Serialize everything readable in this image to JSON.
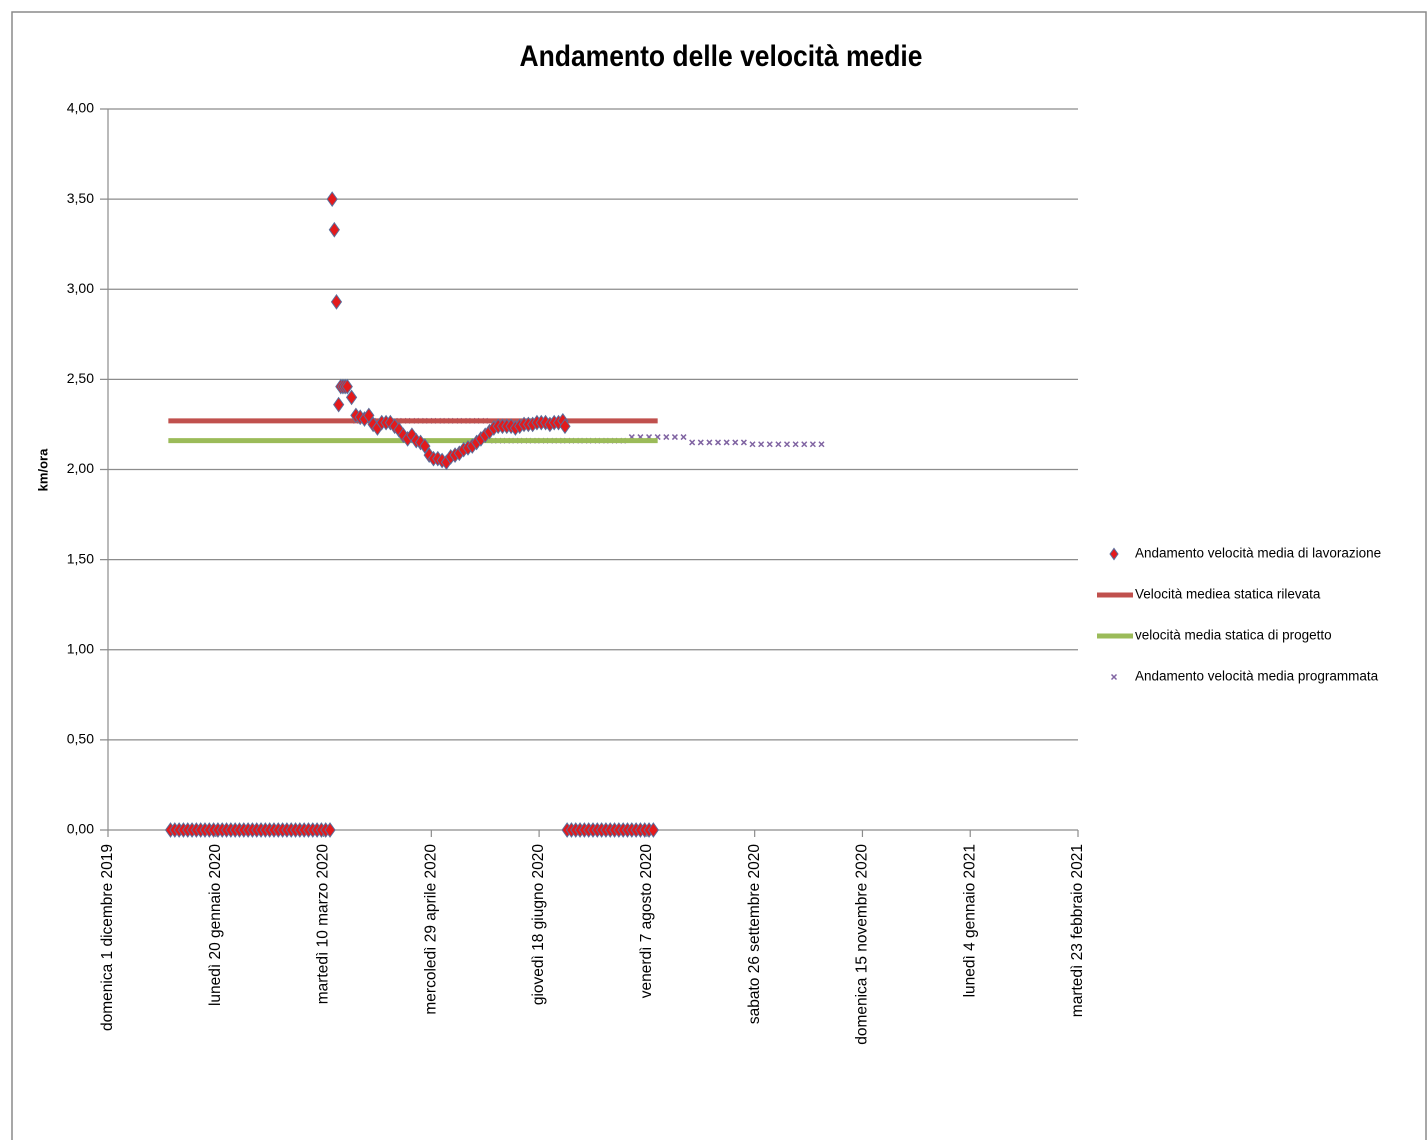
{
  "chart_data": {
    "type": "scatter",
    "title": "Andamento delle velocità medie",
    "y_label": "km/ora",
    "xlim": [
      "2019-12-01",
      "2021-02-23"
    ],
    "xticks": [
      {
        "value": "2019-12-01",
        "label": "domenica 1 dicembre 2019"
      },
      {
        "value": "2020-01-20",
        "label": "lunedì 20 gennaio 2020"
      },
      {
        "value": "2020-03-10",
        "label": "martedì 10 marzo 2020"
      },
      {
        "value": "2020-04-29",
        "label": "mercoledì 29 aprile 2020"
      },
      {
        "value": "2020-06-18",
        "label": "giovedì 18 giugno 2020"
      },
      {
        "value": "2020-08-07",
        "label": "venerdì 7 agosto 2020"
      },
      {
        "value": "2020-09-26",
        "label": "sabato 26 settembre 2020"
      },
      {
        "value": "2020-11-15",
        "label": "domenica 15 novembre 2020"
      },
      {
        "value": "2021-01-04",
        "label": "lunedì 4 gennaio 2021"
      },
      {
        "value": "2021-02-23",
        "label": "martedì 23 febbraio 2021"
      }
    ],
    "ylim": [
      0,
      4
    ],
    "yticks": [
      {
        "value": 0,
        "label": "0,00"
      },
      {
        "value": 0.5,
        "label": "0,50"
      },
      {
        "value": 1,
        "label": "1,00"
      },
      {
        "value": 1.5,
        "label": "1,50"
      },
      {
        "value": 2,
        "label": "2,00"
      },
      {
        "value": 2.5,
        "label": "2,50"
      },
      {
        "value": 3,
        "label": "3,00"
      },
      {
        "value": 3.5,
        "label": "3,50"
      },
      {
        "value": 4,
        "label": "4,00"
      }
    ],
    "grid": true,
    "legend": "right",
    "series": [
      {
        "name": "Andamento velocità media di lavorazione",
        "color": "#e31a1c",
        "marker": "diamond",
        "x": [
          "2019-12-30",
          "2020-01-01",
          "2020-01-03",
          "2020-01-05",
          "2020-01-07",
          "2020-01-09",
          "2020-01-11",
          "2020-01-13",
          "2020-01-15",
          "2020-01-17",
          "2020-01-19",
          "2020-01-21",
          "2020-01-23",
          "2020-01-25",
          "2020-01-27",
          "2020-01-29",
          "2020-01-31",
          "2020-02-02",
          "2020-02-04",
          "2020-02-06",
          "2020-02-08",
          "2020-02-10",
          "2020-02-12",
          "2020-02-14",
          "2020-02-16",
          "2020-02-18",
          "2020-02-20",
          "2020-02-22",
          "2020-02-24",
          "2020-02-26",
          "2020-02-28",
          "2020-03-01",
          "2020-03-03",
          "2020-03-05",
          "2020-03-07",
          "2020-03-09",
          "2020-03-11",
          "2020-03-13",
          "2020-03-14",
          "2020-03-15",
          "2020-03-16",
          "2020-03-17",
          "2020-03-18",
          "2020-03-19",
          "2020-03-20",
          "2020-03-21",
          "2020-03-23",
          "2020-03-25",
          "2020-03-27",
          "2020-03-29",
          "2020-03-31",
          "2020-04-02",
          "2020-04-04",
          "2020-04-06",
          "2020-04-08",
          "2020-04-10",
          "2020-04-12",
          "2020-04-14",
          "2020-04-16",
          "2020-04-18",
          "2020-04-20",
          "2020-04-22",
          "2020-04-24",
          "2020-04-26",
          "2020-04-28",
          "2020-04-30",
          "2020-05-02",
          "2020-05-04",
          "2020-05-06",
          "2020-05-08",
          "2020-05-10",
          "2020-05-12",
          "2020-05-14",
          "2020-05-16",
          "2020-05-18",
          "2020-05-20",
          "2020-05-22",
          "2020-05-24",
          "2020-05-26",
          "2020-05-28",
          "2020-05-30",
          "2020-06-01",
          "2020-06-03",
          "2020-06-05",
          "2020-06-07",
          "2020-06-09",
          "2020-06-11",
          "2020-06-13",
          "2020-06-15",
          "2020-06-17",
          "2020-06-19",
          "2020-06-21",
          "2020-06-23",
          "2020-06-25",
          "2020-06-27",
          "2020-06-29",
          "2020-06-30",
          "2020-07-01",
          "2020-07-03",
          "2020-07-05",
          "2020-07-07",
          "2020-07-09",
          "2020-07-11",
          "2020-07-13",
          "2020-07-15",
          "2020-07-17",
          "2020-07-19",
          "2020-07-21",
          "2020-07-23",
          "2020-07-25",
          "2020-07-27",
          "2020-07-29",
          "2020-07-31",
          "2020-08-02",
          "2020-08-04",
          "2020-08-06",
          "2020-08-08",
          "2020-08-10"
        ],
        "values": [
          0,
          0,
          0,
          0,
          0,
          0,
          0,
          0,
          0,
          0,
          0,
          0,
          0,
          0,
          0,
          0,
          0,
          0,
          0,
          0,
          0,
          0,
          0,
          0,
          0,
          0,
          0,
          0,
          0,
          0,
          0,
          0,
          0,
          0,
          0,
          0,
          0,
          0,
          3.5,
          3.33,
          2.93,
          2.36,
          2.46,
          2.46,
          2.46,
          2.46,
          2.4,
          2.3,
          2.29,
          2.28,
          2.3,
          2.25,
          2.23,
          2.26,
          2.26,
          2.26,
          2.24,
          2.22,
          2.19,
          2.17,
          2.19,
          2.16,
          2.15,
          2.13,
          2.08,
          2.06,
          2.06,
          2.05,
          2.04,
          2.07,
          2.08,
          2.09,
          2.11,
          2.12,
          2.13,
          2.15,
          2.17,
          2.19,
          2.21,
          2.23,
          2.24,
          2.24,
          2.24,
          2.24,
          2.23,
          2.24,
          2.25,
          2.25,
          2.25,
          2.26,
          2.26,
          2.26,
          2.25,
          2.26,
          2.26,
          2.27,
          2.24,
          0,
          0,
          0,
          0,
          0,
          0,
          0,
          0,
          0,
          0,
          0,
          0,
          0,
          0,
          0,
          0,
          0,
          0,
          0,
          0,
          0
        ]
      },
      {
        "name": "Velocità mediea statica rilevata",
        "color": "#c0504d",
        "marker": "line",
        "x": [
          "2019-12-29",
          "2020-08-12"
        ],
        "values": [
          2.27,
          2.27
        ]
      },
      {
        "name": "velocità media statica di progetto",
        "color": "#9bbb59",
        "marker": "line",
        "x": [
          "2019-12-29",
          "2020-08-12"
        ],
        "values": [
          2.16,
          2.16
        ]
      },
      {
        "name": "Andamento velocità media programmata",
        "color": "#8064a2",
        "marker": "cross",
        "x": [
          "2020-03-25",
          "2020-03-29",
          "2020-04-02",
          "2020-04-06",
          "2020-04-10",
          "2020-04-14",
          "2020-04-18",
          "2020-04-22",
          "2020-04-26",
          "2020-04-30",
          "2020-05-04",
          "2020-05-08",
          "2020-05-12",
          "2020-05-16",
          "2020-05-20",
          "2020-05-24",
          "2020-05-28",
          "2020-06-01",
          "2020-06-05",
          "2020-06-09",
          "2020-06-13",
          "2020-06-17",
          "2020-06-21",
          "2020-06-25",
          "2020-06-29",
          "2020-07-03",
          "2020-07-07",
          "2020-07-11",
          "2020-07-15",
          "2020-07-19",
          "2020-07-23",
          "2020-07-27",
          "2020-07-31",
          "2020-08-04",
          "2020-08-08",
          "2020-08-12",
          "2020-08-16",
          "2020-08-20",
          "2020-08-24",
          "2020-08-28",
          "2020-09-01",
          "2020-09-05",
          "2020-09-09",
          "2020-09-13",
          "2020-09-17",
          "2020-09-21",
          "2020-09-25",
          "2020-09-29",
          "2020-10-03",
          "2020-10-07",
          "2020-10-11",
          "2020-10-15",
          "2020-10-19",
          "2020-10-23",
          "2020-10-27"
        ],
        "values": [
          2.27,
          2.27,
          2.27,
          2.27,
          2.27,
          2.27,
          2.27,
          2.27,
          2.27,
          2.27,
          2.27,
          2.27,
          2.27,
          2.27,
          2.27,
          2.27,
          2.16,
          2.16,
          2.16,
          2.16,
          2.16,
          2.16,
          2.16,
          2.16,
          2.16,
          2.16,
          2.16,
          2.16,
          2.16,
          2.16,
          2.16,
          2.16,
          2.18,
          2.18,
          2.18,
          2.18,
          2.18,
          2.18,
          2.18,
          2.15,
          2.15,
          2.15,
          2.15,
          2.15,
          2.15,
          2.15,
          2.14,
          2.14,
          2.14,
          2.14,
          2.14,
          2.14,
          2.14,
          2.14,
          2.14
        ]
      }
    ]
  }
}
